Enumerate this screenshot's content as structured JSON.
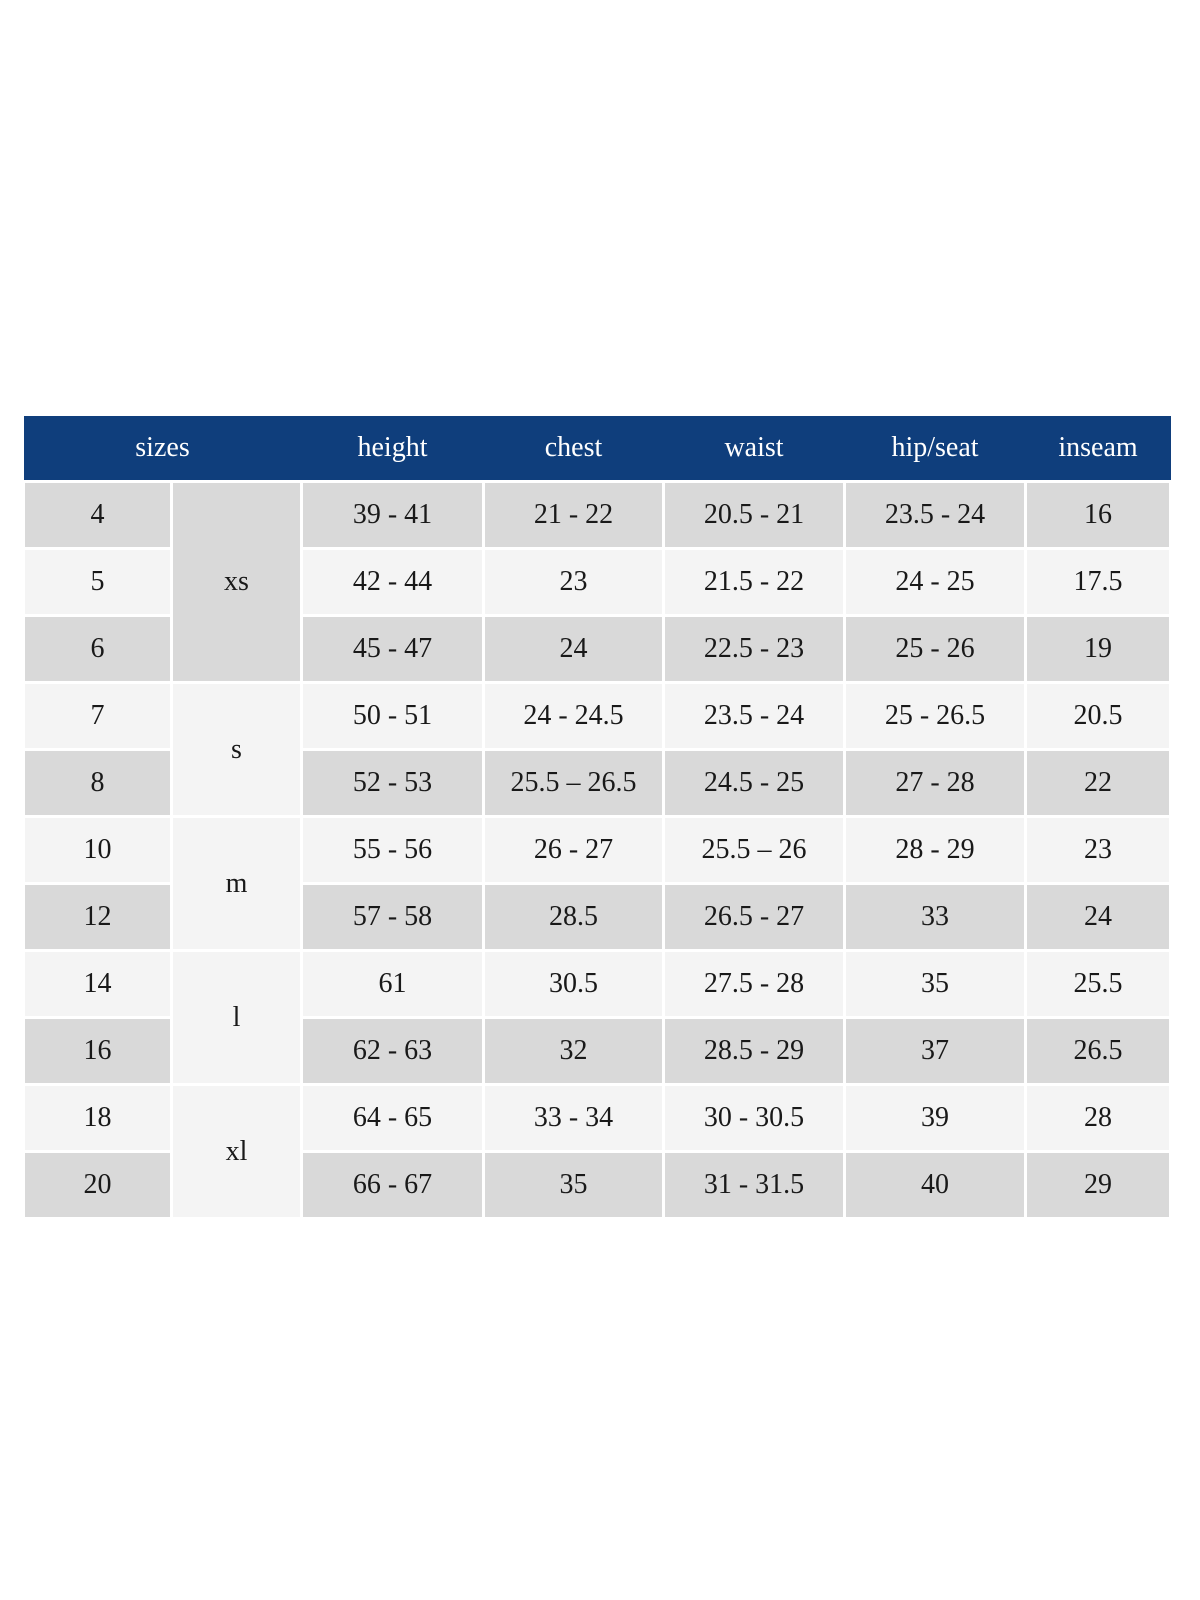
{
  "chart_data": {
    "type": "table",
    "header": {
      "sizes_label": "sizes",
      "measure_columns": [
        "height",
        "chest",
        "waist",
        "hip/seat",
        "inseam"
      ]
    },
    "groups": [
      {
        "label": "xs",
        "variant": "light",
        "span": 3
      },
      {
        "label": "s",
        "variant": "dark",
        "span": 2
      },
      {
        "label": "m",
        "variant": "light",
        "span": 2
      },
      {
        "label": "l",
        "variant": "dark",
        "span": 2
      },
      {
        "label": "xl",
        "variant": "light",
        "span": 2
      }
    ],
    "rows": [
      {
        "size": "4",
        "height": "39 - 41",
        "chest": "21 - 22",
        "waist": "20.5 - 21",
        "hip_seat": "23.5 - 24",
        "inseam": "16"
      },
      {
        "size": "5",
        "height": "42 - 44",
        "chest": "23",
        "waist": "21.5 - 22",
        "hip_seat": "24 - 25",
        "inseam": "17.5"
      },
      {
        "size": "6",
        "height": "45 - 47",
        "chest": "24",
        "waist": "22.5 - 23",
        "hip_seat": "25 - 26",
        "inseam": "19"
      },
      {
        "size": "7",
        "height": "50 - 51",
        "chest": "24 - 24.5",
        "waist": "23.5 - 24",
        "hip_seat": "25 - 26.5",
        "inseam": "20.5"
      },
      {
        "size": "8",
        "height": "52 - 53",
        "chest": "25.5 – 26.5",
        "waist": "24.5 - 25",
        "hip_seat": "27 - 28",
        "inseam": "22"
      },
      {
        "size": "10",
        "height": "55 - 56",
        "chest": "26 - 27",
        "waist": "25.5 – 26",
        "hip_seat": "28 - 29",
        "inseam": "23"
      },
      {
        "size": "12",
        "height": "57 - 58",
        "chest": "28.5",
        "waist": "26.5 - 27",
        "hip_seat": "33",
        "inseam": "24"
      },
      {
        "size": "14",
        "height": "61",
        "chest": "30.5",
        "waist": "27.5 - 28",
        "hip_seat": "35",
        "inseam": "25.5"
      },
      {
        "size": "16",
        "height": "62 - 63",
        "chest": "32",
        "waist": "28.5 - 29",
        "hip_seat": "37",
        "inseam": "26.5"
      },
      {
        "size": "18",
        "height": "64 - 65",
        "chest": "33 - 34",
        "waist": "30 - 30.5",
        "hip_seat": "39",
        "inseam": "28"
      },
      {
        "size": "20",
        "height": "66 - 67",
        "chest": "35",
        "waist": "31 - 31.5",
        "hip_seat": "40",
        "inseam": "29"
      }
    ]
  },
  "colors": {
    "header_bg": "#0f3e7c",
    "header_text": "#ffffff",
    "group_light_bg": "#ccd8e4",
    "group_dark_bg": "#0f3e7c",
    "row_gray": "#d9d9d9",
    "row_light": "#f4f4f4",
    "body_text": "#191919",
    "page_bg": "#ffffff"
  }
}
